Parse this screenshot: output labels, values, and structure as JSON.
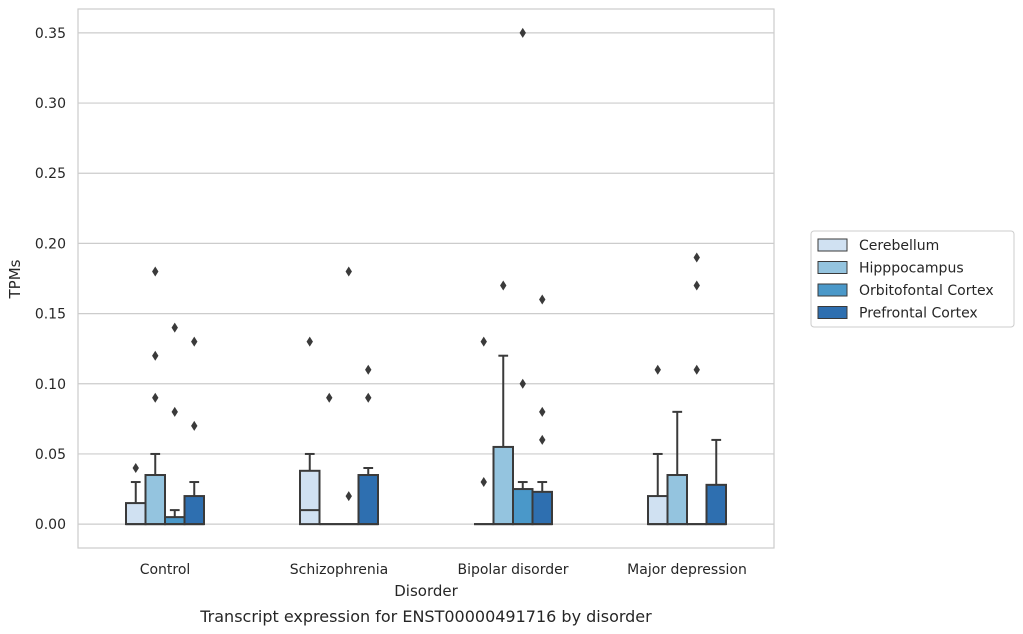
{
  "chart_data": {
    "type": "box",
    "title": "",
    "caption": "Transcript expression for ENST00000491716 by disorder",
    "xlabel": "Disorder",
    "ylabel": "TPMs",
    "ylim": [
      -0.017,
      0.367
    ],
    "yticks": [
      0.0,
      0.05,
      0.1,
      0.15,
      0.2,
      0.25,
      0.3,
      0.35
    ],
    "ytick_labels": [
      "0.00",
      "0.05",
      "0.10",
      "0.15",
      "0.20",
      "0.25",
      "0.30",
      "0.35"
    ],
    "grid": "horizontal",
    "legend_position": "right",
    "categories": [
      "Control",
      "Schizophrenia",
      "Bipolar disorder",
      "Major depression"
    ],
    "series": [
      {
        "name": "Cerebellum",
        "color": "#d0e1f2",
        "boxes": [
          {
            "q1": 0.0,
            "median": 0.0,
            "q3": 0.015,
            "whisker_low": 0.0,
            "whisker_high": 0.03,
            "outliers": [
              0.04
            ]
          },
          {
            "q1": 0.0,
            "median": 0.01,
            "q3": 0.038,
            "whisker_low": 0.0,
            "whisker_high": 0.05,
            "outliers": [
              0.13
            ]
          },
          {
            "q1": 0.0,
            "median": 0.0,
            "q3": 0.0,
            "whisker_low": 0.0,
            "whisker_high": 0.0,
            "outliers": [
              0.03,
              0.13
            ]
          },
          {
            "q1": 0.0,
            "median": 0.0,
            "q3": 0.02,
            "whisker_low": 0.0,
            "whisker_high": 0.05,
            "outliers": [
              0.11
            ]
          }
        ]
      },
      {
        "name": "Hipppocampus",
        "color": "#94c4df",
        "boxes": [
          {
            "q1": 0.0,
            "median": 0.0,
            "q3": 0.035,
            "whisker_low": 0.0,
            "whisker_high": 0.05,
            "outliers": [
              0.09,
              0.12,
              0.18
            ]
          },
          {
            "q1": 0.0,
            "median": 0.0,
            "q3": 0.0,
            "whisker_low": 0.0,
            "whisker_high": 0.0,
            "outliers": [
              0.09
            ]
          },
          {
            "q1": 0.0,
            "median": 0.0,
            "q3": 0.055,
            "whisker_low": 0.0,
            "whisker_high": 0.12,
            "outliers": [
              0.17
            ]
          },
          {
            "q1": 0.0,
            "median": 0.0,
            "q3": 0.035,
            "whisker_low": 0.0,
            "whisker_high": 0.08,
            "outliers": []
          }
        ]
      },
      {
        "name": "Orbitofontal Cortex",
        "color": "#4a98c9",
        "boxes": [
          {
            "q1": 0.0,
            "median": 0.0,
            "q3": 0.005,
            "whisker_low": 0.0,
            "whisker_high": 0.01,
            "outliers": [
              0.08,
              0.14
            ]
          },
          {
            "q1": 0.0,
            "median": 0.0,
            "q3": 0.0,
            "whisker_low": 0.0,
            "whisker_high": 0.0,
            "outliers": [
              0.02,
              0.18
            ]
          },
          {
            "q1": 0.0,
            "median": 0.0,
            "q3": 0.025,
            "whisker_low": 0.0,
            "whisker_high": 0.03,
            "outliers": [
              0.1,
              0.35
            ]
          },
          {
            "q1": 0.0,
            "median": 0.0,
            "q3": 0.0,
            "whisker_low": 0.0,
            "whisker_high": 0.0,
            "outliers": [
              0.11,
              0.17,
              0.19
            ]
          }
        ]
      },
      {
        "name": "Prefrontal Cortex",
        "color": "#2e6fb0",
        "boxes": [
          {
            "q1": 0.0,
            "median": 0.0,
            "q3": 0.02,
            "whisker_low": 0.0,
            "whisker_high": 0.03,
            "outliers": [
              0.07,
              0.13
            ]
          },
          {
            "q1": 0.0,
            "median": 0.0,
            "q3": 0.035,
            "whisker_low": 0.0,
            "whisker_high": 0.04,
            "outliers": [
              0.09,
              0.11
            ]
          },
          {
            "q1": 0.0,
            "median": 0.0,
            "q3": 0.023,
            "whisker_low": 0.0,
            "whisker_high": 0.03,
            "outliers": [
              0.06,
              0.08,
              0.16
            ]
          },
          {
            "q1": 0.0,
            "median": 0.0,
            "q3": 0.028,
            "whisker_low": 0.0,
            "whisker_high": 0.06,
            "outliers": []
          }
        ]
      }
    ]
  }
}
